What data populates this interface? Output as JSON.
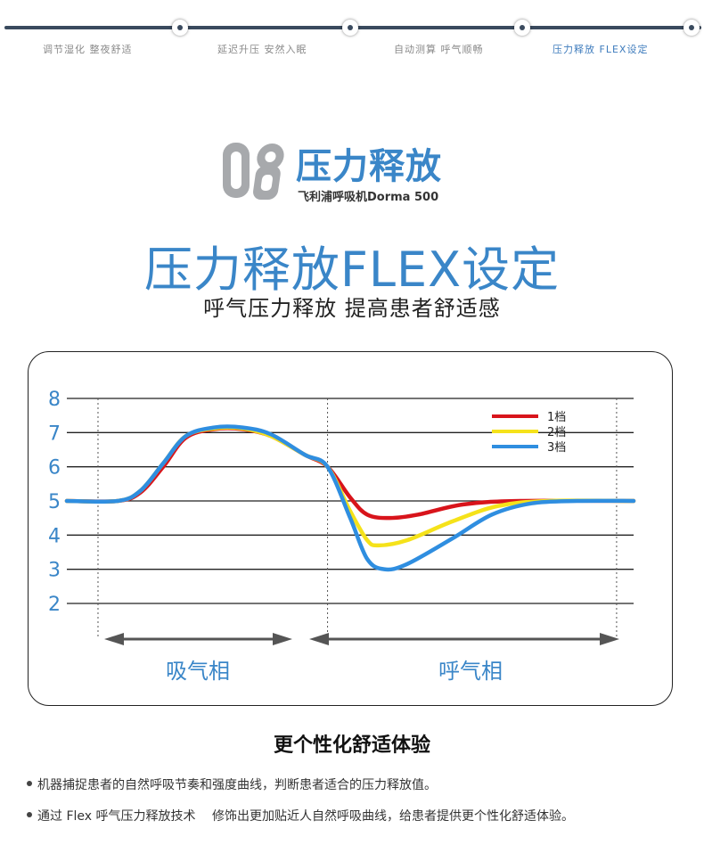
{
  "nav": {
    "items": [
      {
        "label": "调节湿化 整夜舒适",
        "active": false
      },
      {
        "label": "延迟升压 安然入眠",
        "active": false
      },
      {
        "label": "自动测算 呼气顺畅",
        "active": false
      },
      {
        "label": "压力释放 FLEX设定",
        "active": true
      }
    ]
  },
  "logo": {
    "number": "08",
    "title": "压力释放",
    "subtitle": "飞利浦呼吸机Dorma 500"
  },
  "headline": "压力释放FLEX设定",
  "subheadline": "呼气压力释放 提高患者舒适感",
  "chart_data": {
    "type": "line",
    "title": "",
    "xlabel": "",
    "ylabel": "",
    "ylim": [
      2,
      8
    ],
    "yticks": [
      2,
      3,
      4,
      5,
      6,
      7,
      8
    ],
    "x_regions": [
      {
        "label": "吸气相",
        "from": 0.0,
        "to": 0.46
      },
      {
        "label": "呼气相",
        "from": 0.46,
        "to": 1.0
      }
    ],
    "legend_position": "top-right",
    "series": [
      {
        "name": "1档",
        "color": "#d8141b",
        "points": [
          [
            0,
            5
          ],
          [
            0.09,
            5
          ],
          [
            0.13,
            5.25
          ],
          [
            0.17,
            6.0
          ],
          [
            0.21,
            6.85
          ],
          [
            0.26,
            7.1
          ],
          [
            0.31,
            7.1
          ],
          [
            0.36,
            6.9
          ],
          [
            0.42,
            6.35
          ],
          [
            0.46,
            6.0
          ],
          [
            0.5,
            5.1
          ],
          [
            0.53,
            4.6
          ],
          [
            0.57,
            4.5
          ],
          [
            0.62,
            4.6
          ],
          [
            0.7,
            4.9
          ],
          [
            0.8,
            5.0
          ],
          [
            1.0,
            5.0
          ]
        ]
      },
      {
        "name": "2档",
        "color": "#f5e21a",
        "points": [
          [
            0,
            5
          ],
          [
            0.09,
            5
          ],
          [
            0.13,
            5.3
          ],
          [
            0.17,
            6.1
          ],
          [
            0.21,
            6.9
          ],
          [
            0.26,
            7.12
          ],
          [
            0.31,
            7.12
          ],
          [
            0.36,
            6.9
          ],
          [
            0.42,
            6.35
          ],
          [
            0.46,
            6.0
          ],
          [
            0.5,
            4.7
          ],
          [
            0.53,
            3.85
          ],
          [
            0.55,
            3.7
          ],
          [
            0.6,
            3.85
          ],
          [
            0.68,
            4.4
          ],
          [
            0.76,
            4.85
          ],
          [
            0.85,
            5.0
          ],
          [
            1.0,
            5.0
          ]
        ]
      },
      {
        "name": "3档",
        "color": "#2f8ee0",
        "points": [
          [
            0,
            5
          ],
          [
            0.09,
            5
          ],
          [
            0.13,
            5.3
          ],
          [
            0.17,
            6.1
          ],
          [
            0.21,
            6.9
          ],
          [
            0.26,
            7.15
          ],
          [
            0.31,
            7.15
          ],
          [
            0.36,
            6.95
          ],
          [
            0.42,
            6.35
          ],
          [
            0.46,
            6.0
          ],
          [
            0.5,
            4.5
          ],
          [
            0.53,
            3.3
          ],
          [
            0.56,
            3.0
          ],
          [
            0.6,
            3.15
          ],
          [
            0.68,
            3.9
          ],
          [
            0.75,
            4.6
          ],
          [
            0.82,
            4.93
          ],
          [
            0.9,
            5.0
          ],
          [
            1.0,
            5.0
          ]
        ]
      }
    ]
  },
  "section_title": "更个性化舒适体验",
  "bullets": [
    "机器捕捉患者的自然呼吸节奏和强度曲线，判断患者适合的压力释放值。",
    "通过 Flex 呼气压力释放技术　 修饰出更加贴近人自然呼吸曲线，给患者提供更个性化舒适体验。"
  ],
  "colors": {
    "brand_blue": "#3a86c8",
    "nav_dark": "#3a4a5e",
    "axis_label_blue": "#3a86c8"
  }
}
